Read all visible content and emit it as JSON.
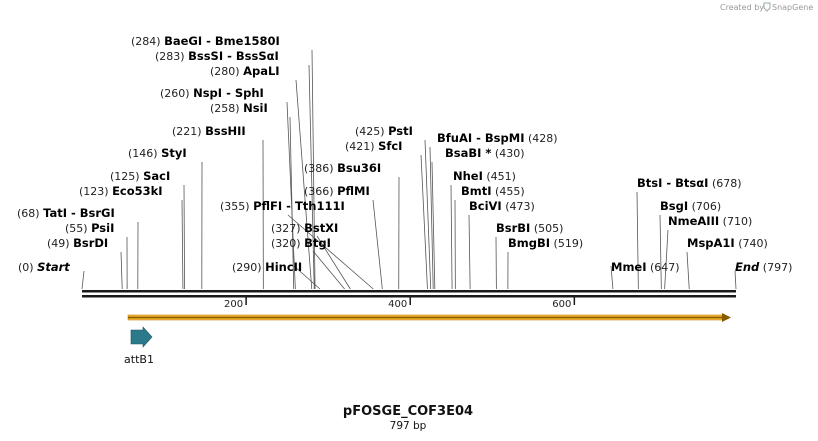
{
  "credit": "Created by",
  "brand": "SnapGene",
  "plasmid": {
    "name": "pFOSGE_COF3E04",
    "length_label": "797 bp",
    "length": 797
  },
  "axis": {
    "ticks": [
      200,
      400,
      600
    ]
  },
  "colors": {
    "backbone": "#1a1a1a",
    "orf_fill": "#f2b233",
    "orf_edge": "#8a5a00",
    "feature": "#2b7a8c"
  },
  "features": [
    {
      "name": "attB1",
      "start": 60,
      "end": 85,
      "type": "arrow"
    }
  ],
  "orf": {
    "start": 60,
    "end": 797
  },
  "sites": [
    {
      "pos": 0,
      "label": "(0)",
      "names": [
        "Start"
      ],
      "italic": true
    },
    {
      "pos": 49,
      "label": "(49)",
      "names": [
        "BsrDI"
      ]
    },
    {
      "pos": 55,
      "label": "(55)",
      "names": [
        "PsiI"
      ]
    },
    {
      "pos": 68,
      "label": "(68)",
      "names": [
        "TatI",
        "BsrGI"
      ]
    },
    {
      "pos": 123,
      "label": "(123)",
      "names": [
        "Eco53kI"
      ]
    },
    {
      "pos": 125,
      "label": "(125)",
      "names": [
        "SacI"
      ]
    },
    {
      "pos": 146,
      "label": "(146)",
      "names": [
        "StyI"
      ]
    },
    {
      "pos": 221,
      "label": "(221)",
      "names": [
        "BssHII"
      ]
    },
    {
      "pos": 258,
      "label": "(258)",
      "names": [
        "NsiI"
      ]
    },
    {
      "pos": 260,
      "label": "(260)",
      "names": [
        "NspI",
        "SphI"
      ]
    },
    {
      "pos": 280,
      "label": "(280)",
      "names": [
        "ApaLI"
      ]
    },
    {
      "pos": 283,
      "label": "(283)",
      "names": [
        "BssSI",
        "BssSαI"
      ]
    },
    {
      "pos": 284,
      "label": "(284)",
      "names": [
        "BaeGI",
        "Bme1580I"
      ]
    },
    {
      "pos": 290,
      "label": "(290)",
      "names": [
        "HincII"
      ]
    },
    {
      "pos": 320,
      "label": "(320)",
      "names": [
        "BtgI"
      ]
    },
    {
      "pos": 327,
      "label": "(327)",
      "names": [
        "BstXI"
      ]
    },
    {
      "pos": 355,
      "label": "(355)",
      "names": [
        "PflFI",
        "Tth111I"
      ]
    },
    {
      "pos": 366,
      "label": "(366)",
      "names": [
        "PflMI"
      ]
    },
    {
      "pos": 386,
      "label": "(386)",
      "names": [
        "Bsu36I"
      ]
    },
    {
      "pos": 421,
      "label": "(421)",
      "names": [
        "SfcI"
      ]
    },
    {
      "pos": 425,
      "label": "(425)",
      "names": [
        "PstI"
      ]
    },
    {
      "pos": 428,
      "label": "(428)",
      "names": [
        "BfuAI",
        "BspMI"
      ]
    },
    {
      "pos": 430,
      "label": "(430)",
      "names": [
        "BsaBI *"
      ]
    },
    {
      "pos": 451,
      "label": "(451)",
      "names": [
        "NheI"
      ]
    },
    {
      "pos": 455,
      "label": "(455)",
      "names": [
        "BmtI"
      ]
    },
    {
      "pos": 473,
      "label": "(473)",
      "names": [
        "BciVI"
      ]
    },
    {
      "pos": 505,
      "label": "(505)",
      "names": [
        "BsrBI"
      ]
    },
    {
      "pos": 519,
      "label": "(519)",
      "names": [
        "BmgBI"
      ]
    },
    {
      "pos": 647,
      "label": "(647)",
      "names": [
        "MmeI"
      ]
    },
    {
      "pos": 678,
      "label": "(678)",
      "names": [
        "BtsI",
        "BtsαI"
      ]
    },
    {
      "pos": 706,
      "label": "(706)",
      "names": [
        "BsgI"
      ]
    },
    {
      "pos": 710,
      "label": "(710)",
      "names": [
        "NmeAIII"
      ]
    },
    {
      "pos": 740,
      "label": "(740)",
      "names": [
        "MspA1I"
      ]
    },
    {
      "pos": 797,
      "label": "(797)",
      "names": [
        "End"
      ],
      "italic": true
    }
  ]
}
